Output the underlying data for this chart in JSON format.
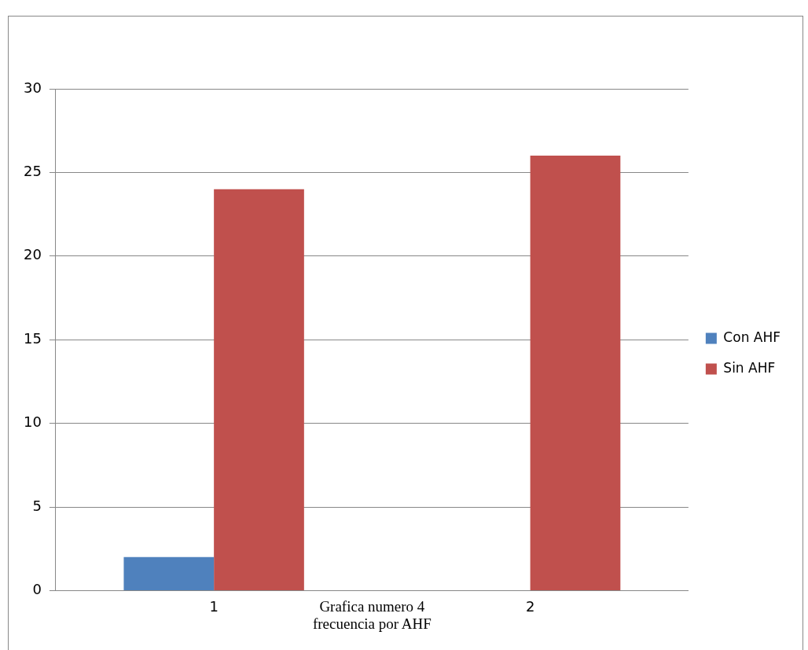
{
  "chart_data": {
    "type": "bar",
    "xlabel": "Grafica numero 4 frecuencia por AHF",
    "categories": [
      "1",
      "2"
    ],
    "series": [
      {
        "name": "Con AHF",
        "color": "#4f81bd",
        "values": [
          2,
          0
        ]
      },
      {
        "name": "Sin AHF",
        "color": "#c0504d",
        "values": [
          24,
          26
        ]
      }
    ],
    "ylim": [
      0,
      30
    ],
    "yticks": [
      0,
      5,
      10,
      15,
      20,
      25,
      30
    ],
    "grid": "y",
    "legend": "right"
  }
}
